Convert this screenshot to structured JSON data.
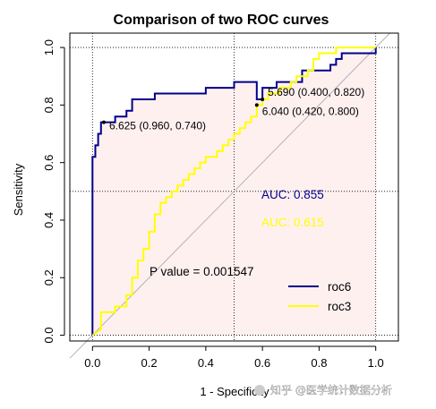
{
  "chart_data": {
    "type": "line",
    "title": "Comparison of two ROC curves",
    "xlabel": "1 - Specificity",
    "ylabel": "Sensitivity",
    "xlim": [
      -0.08,
      1.08
    ],
    "ylim": [
      -0.02,
      1.05
    ],
    "x_ticks": [
      "0.0",
      "0.2",
      "0.4",
      "0.6",
      "0.8",
      "1.0"
    ],
    "y_ticks": [
      "0.0",
      "0.2",
      "0.4",
      "0.6",
      "0.8",
      "1.0"
    ],
    "grid": "dotted at 0, 0.5, 1",
    "colors": {
      "roc6": "#00008B",
      "roc3": "#FFFF00",
      "fill": "#FFF0F0",
      "diagonal": "#B3B3B3"
    },
    "series": [
      {
        "name": "roc6",
        "color": "#00008B",
        "x": [
          0.0,
          0.0,
          0.01,
          0.01,
          0.02,
          0.02,
          0.03,
          0.03,
          0.08,
          0.08,
          0.12,
          0.12,
          0.14,
          0.14,
          0.22,
          0.22,
          0.4,
          0.4,
          0.5,
          0.5,
          0.58,
          0.58,
          0.6,
          0.6,
          0.65,
          0.65,
          0.74,
          0.74,
          0.84,
          0.84,
          0.86,
          0.86,
          0.88,
          0.88,
          1.0,
          1.0
        ],
        "y": [
          0.0,
          0.62,
          0.62,
          0.66,
          0.66,
          0.7,
          0.7,
          0.74,
          0.74,
          0.76,
          0.76,
          0.78,
          0.78,
          0.82,
          0.82,
          0.84,
          0.84,
          0.86,
          0.86,
          0.88,
          0.88,
          0.82,
          0.82,
          0.86,
          0.86,
          0.88,
          0.88,
          0.92,
          0.92,
          0.94,
          0.94,
          0.96,
          0.96,
          0.98,
          0.98,
          1.0
        ]
      },
      {
        "name": "roc3",
        "color": "#FFFF00",
        "x": [
          0.0,
          0.03,
          0.03,
          0.08,
          0.08,
          0.12,
          0.12,
          0.14,
          0.14,
          0.16,
          0.16,
          0.18,
          0.18,
          0.2,
          0.2,
          0.22,
          0.22,
          0.24,
          0.24,
          0.26,
          0.26,
          0.28,
          0.28,
          0.3,
          0.3,
          0.32,
          0.32,
          0.34,
          0.34,
          0.36,
          0.36,
          0.38,
          0.38,
          0.4,
          0.4,
          0.44,
          0.44,
          0.46,
          0.46,
          0.48,
          0.48,
          0.5,
          0.5,
          0.52,
          0.52,
          0.54,
          0.54,
          0.56,
          0.56,
          0.58,
          0.58,
          0.6,
          0.6,
          0.62,
          0.62,
          0.66,
          0.66,
          0.7,
          0.7,
          0.72,
          0.72,
          0.76,
          0.76,
          0.78,
          0.78,
          0.8,
          0.8,
          0.86,
          0.86,
          0.9,
          0.9,
          1.0
        ],
        "y": [
          0.0,
          0.02,
          0.08,
          0.08,
          0.1,
          0.1,
          0.14,
          0.14,
          0.2,
          0.2,
          0.26,
          0.26,
          0.3,
          0.3,
          0.36,
          0.36,
          0.42,
          0.42,
          0.46,
          0.46,
          0.48,
          0.48,
          0.5,
          0.5,
          0.52,
          0.52,
          0.54,
          0.54,
          0.56,
          0.56,
          0.58,
          0.58,
          0.6,
          0.6,
          0.62,
          0.62,
          0.64,
          0.64,
          0.66,
          0.66,
          0.68,
          0.68,
          0.7,
          0.7,
          0.72,
          0.72,
          0.74,
          0.74,
          0.76,
          0.76,
          0.8,
          0.8,
          0.82,
          0.82,
          0.84,
          0.84,
          0.86,
          0.86,
          0.88,
          0.88,
          0.9,
          0.9,
          0.92,
          0.92,
          0.96,
          0.96,
          0.98,
          0.98,
          1.0,
          1.0,
          1.0,
          1.0
        ]
      }
    ],
    "threshold_points": [
      {
        "label": "6.625 (0.960, 0.740)",
        "x": 0.04,
        "y": 0.74
      },
      {
        "label": "5.690 (0.400, 0.820)",
        "x": 0.6,
        "y": 0.82
      },
      {
        "label": "6.040 (0.420, 0.800)",
        "x": 0.58,
        "y": 0.8
      }
    ],
    "annotations": {
      "auc_roc6": "AUC: 0.855",
      "auc_roc3": "AUC: 0.615",
      "p_value": "P value = 0.001547"
    },
    "legend": {
      "placement": "bottom-right",
      "entries": [
        "roc6",
        "roc3"
      ]
    }
  },
  "watermark": {
    "icon": "wechat-icon",
    "text": "知乎 @医学统计数据分析"
  }
}
